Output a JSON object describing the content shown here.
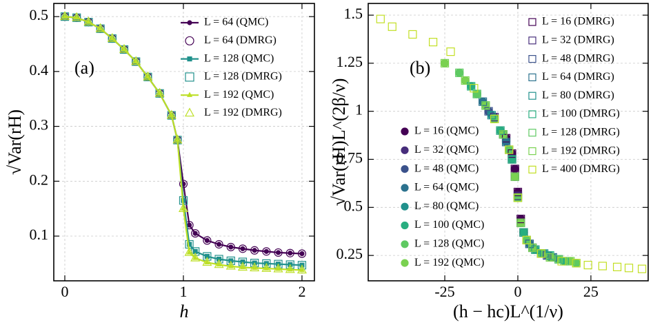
{
  "chart_data": [
    {
      "type": "line",
      "panel_label": "(a)",
      "xlabel": "h",
      "ylabel": "√Var(rH)",
      "xlim": [
        -0.093,
        2.105
      ],
      "ylim": [
        0.0185,
        0.524
      ],
      "xticks": [
        0,
        1,
        2
      ],
      "yticks": [
        0.1,
        0.2,
        0.3,
        0.4,
        0.5
      ],
      "grid": true,
      "x": [
        0,
        0.1,
        0.2,
        0.3,
        0.4,
        0.5,
        0.6,
        0.7,
        0.8,
        0.9,
        0.95,
        1.0,
        1.05,
        1.1,
        1.2,
        1.3,
        1.4,
        1.5,
        1.6,
        1.7,
        1.8,
        1.9,
        2.0
      ],
      "series": [
        {
          "name": "L = 64 (QMC)",
          "color": "#440154",
          "marker": "circle",
          "filled": true,
          "line": true,
          "values": [
            0.5,
            0.498,
            0.49,
            0.478,
            0.46,
            0.44,
            0.418,
            0.39,
            0.36,
            0.32,
            0.275,
            0.195,
            0.12,
            0.105,
            0.092,
            0.085,
            0.08,
            0.077,
            0.074,
            0.072,
            0.07,
            0.069,
            0.068
          ]
        },
        {
          "name": "L = 64 (DMRG)",
          "color": "#440154",
          "marker": "circle",
          "filled": false,
          "line": false,
          "values": [
            0.5,
            0.498,
            0.49,
            0.478,
            0.46,
            0.44,
            0.418,
            0.39,
            0.36,
            0.32,
            0.275,
            0.195,
            0.12,
            0.105,
            0.092,
            0.085,
            0.08,
            0.077,
            0.074,
            0.072,
            0.07,
            0.069,
            0.068
          ]
        },
        {
          "name": "L = 128 (QMC)",
          "color": "#21918c",
          "marker": "square",
          "filled": true,
          "line": true,
          "values": [
            0.5,
            0.498,
            0.49,
            0.478,
            0.46,
            0.44,
            0.418,
            0.39,
            0.36,
            0.32,
            0.275,
            0.165,
            0.085,
            0.072,
            0.063,
            0.058,
            0.055,
            0.053,
            0.051,
            0.05,
            0.049,
            0.048,
            0.047
          ]
        },
        {
          "name": "L = 128 (DMRG)",
          "color": "#21918c",
          "marker": "square",
          "filled": false,
          "line": false,
          "values": [
            0.5,
            0.498,
            0.49,
            0.478,
            0.46,
            0.44,
            0.418,
            0.39,
            0.36,
            0.32,
            0.275,
            0.165,
            0.085,
            0.072,
            0.063,
            0.058,
            0.055,
            0.053,
            0.051,
            0.05,
            0.049,
            0.048,
            0.047
          ]
        },
        {
          "name": "L = 192 (QMC)",
          "color": "#bddf26",
          "marker": "triangle",
          "filled": true,
          "line": true,
          "values": [
            0.5,
            0.498,
            0.49,
            0.478,
            0.46,
            0.44,
            0.418,
            0.39,
            0.36,
            0.32,
            0.275,
            0.15,
            0.07,
            0.06,
            0.052,
            0.048,
            0.045,
            0.043,
            0.042,
            0.041,
            0.04,
            0.039,
            0.038
          ]
        },
        {
          "name": "L = 192 (DMRG)",
          "color": "#bddf26",
          "marker": "triangle",
          "filled": false,
          "line": false,
          "values": [
            0.5,
            0.498,
            0.49,
            0.478,
            0.46,
            0.44,
            0.418,
            0.39,
            0.36,
            0.32,
            0.275,
            0.15,
            0.07,
            0.06,
            0.052,
            0.048,
            0.045,
            0.043,
            0.042,
            0.041,
            0.04,
            0.039,
            0.038
          ]
        }
      ]
    },
    {
      "type": "scatter",
      "panel_label": "(b)",
      "xlabel": "(h − hc)L^(1/ν)",
      "ylabel": "√Var(rH)L^(2β/ν)",
      "xlim": [
        -51.2,
        44.6
      ],
      "ylim": [
        0.118,
        1.561
      ],
      "xticks": [
        -25,
        0,
        25
      ],
      "yticks": [
        0.25,
        0.5,
        0.75,
        1.0,
        1.25,
        1.5
      ],
      "grid": true,
      "series": [
        {
          "name": "L = 16 (QMC)",
          "color": "#440154",
          "marker": "circle",
          "filled": true,
          "x": [
            -4,
            -2,
            -1,
            0,
            1,
            2,
            4
          ],
          "values": [
            0.86,
            0.78,
            0.7,
            0.58,
            0.44,
            0.37,
            0.31
          ]
        },
        {
          "name": "L = 32 (QMC)",
          "color": "#472d7b",
          "marker": "circle",
          "filled": true,
          "x": [
            -8,
            -5,
            -2,
            0,
            2,
            5,
            8
          ],
          "values": [
            0.97,
            0.88,
            0.75,
            0.56,
            0.37,
            0.29,
            0.26
          ]
        },
        {
          "name": "L = 48 (QMC)",
          "color": "#3b528b",
          "marker": "circle",
          "filled": true,
          "x": [
            -10,
            -6,
            -3,
            -1,
            1,
            3,
            6,
            10
          ],
          "values": [
            1.0,
            0.9,
            0.8,
            0.66,
            0.42,
            0.33,
            0.28,
            0.25
          ]
        },
        {
          "name": "L = 64 (QMC)",
          "color": "#2c728e",
          "marker": "circle",
          "filled": true,
          "x": [
            -12,
            -8,
            -4,
            -1,
            1,
            4,
            8,
            12
          ],
          "values": [
            1.05,
            0.96,
            0.84,
            0.66,
            0.42,
            0.31,
            0.26,
            0.24
          ]
        },
        {
          "name": "L = 80 (QMC)",
          "color": "#21918c",
          "marker": "circle",
          "filled": true,
          "x": [
            -14,
            -9,
            -5,
            -2,
            0,
            2,
            5,
            9,
            14
          ],
          "values": [
            1.09,
            0.98,
            0.88,
            0.75,
            0.55,
            0.37,
            0.29,
            0.26,
            0.23
          ]
        },
        {
          "name": "L = 100 (QMC)",
          "color": "#28ae80",
          "marker": "circle",
          "filled": true,
          "x": [
            -16,
            -11,
            -6,
            -2,
            0,
            2,
            6,
            11,
            16
          ],
          "values": [
            1.13,
            1.03,
            0.9,
            0.75,
            0.55,
            0.37,
            0.28,
            0.25,
            0.22
          ]
        },
        {
          "name": "L = 128 (QMC)",
          "color": "#5ec962",
          "marker": "circle",
          "filled": true,
          "x": [
            -20,
            -14,
            -8,
            -3,
            0,
            3,
            8,
            14,
            20
          ],
          "values": [
            1.2,
            1.09,
            0.96,
            0.8,
            0.55,
            0.33,
            0.26,
            0.23,
            0.21
          ]
        },
        {
          "name": "L = 192 (QMC)",
          "color": "#7ad151",
          "marker": "circle",
          "filled": true,
          "x": [
            -25,
            -18,
            -11,
            -5,
            -1,
            1,
            5,
            11,
            18
          ],
          "values": [
            1.25,
            1.16,
            1.03,
            0.88,
            0.66,
            0.42,
            0.29,
            0.24,
            0.22
          ]
        },
        {
          "name": "L = 16 (DMRG)",
          "color": "#440154",
          "marker": "square",
          "filled": false,
          "x": [
            -4,
            -2,
            -1,
            0,
            1,
            2,
            4
          ],
          "values": [
            0.86,
            0.78,
            0.7,
            0.58,
            0.44,
            0.37,
            0.31
          ]
        },
        {
          "name": "L = 32 (DMRG)",
          "color": "#472d7b",
          "marker": "square",
          "filled": false,
          "x": [
            -8,
            -5,
            -2,
            0,
            2,
            5,
            8
          ],
          "values": [
            0.97,
            0.88,
            0.75,
            0.56,
            0.37,
            0.29,
            0.26
          ]
        },
        {
          "name": "L = 48 (DMRG)",
          "color": "#3b528b",
          "marker": "square",
          "filled": false,
          "x": [
            -10,
            -6,
            -3,
            -1,
            1,
            3,
            6,
            10
          ],
          "values": [
            1.0,
            0.9,
            0.8,
            0.66,
            0.42,
            0.33,
            0.28,
            0.25
          ]
        },
        {
          "name": "L = 64 (DMRG)",
          "color": "#2c728e",
          "marker": "square",
          "filled": false,
          "x": [
            -12,
            -8,
            -4,
            -1,
            1,
            4,
            8,
            12
          ],
          "values": [
            1.05,
            0.96,
            0.84,
            0.66,
            0.42,
            0.31,
            0.26,
            0.24
          ]
        },
        {
          "name": "L = 80 (DMRG)",
          "color": "#21918c",
          "marker": "square",
          "filled": false,
          "x": [
            -14,
            -9,
            -5,
            -2,
            0,
            2,
            5,
            9,
            14
          ],
          "values": [
            1.09,
            0.98,
            0.88,
            0.75,
            0.55,
            0.37,
            0.29,
            0.26,
            0.23
          ]
        },
        {
          "name": "L = 100 (DMRG)",
          "color": "#28ae80",
          "marker": "square",
          "filled": false,
          "x": [
            -16,
            -11,
            -6,
            -2,
            0,
            2,
            6,
            11,
            16
          ],
          "values": [
            1.13,
            1.03,
            0.9,
            0.75,
            0.55,
            0.37,
            0.28,
            0.25,
            0.22
          ]
        },
        {
          "name": "L = 128 (DMRG)",
          "color": "#5ec962",
          "marker": "square",
          "filled": false,
          "x": [
            -20,
            -14,
            -8,
            -3,
            0,
            3,
            8,
            14,
            20
          ],
          "values": [
            1.2,
            1.09,
            0.96,
            0.8,
            0.55,
            0.33,
            0.26,
            0.23,
            0.21
          ]
        },
        {
          "name": "L = 192 (DMRG)",
          "color": "#7ad151",
          "marker": "square",
          "filled": false,
          "x": [
            -25,
            -18,
            -11,
            -5,
            -1,
            1,
            5,
            11,
            18
          ],
          "values": [
            1.25,
            1.16,
            1.03,
            0.88,
            0.66,
            0.42,
            0.29,
            0.24,
            0.22
          ]
        },
        {
          "name": "L = 400 (DMRG)",
          "color": "#c2df23",
          "marker": "square",
          "filled": false,
          "x": [
            -47,
            -43,
            -36,
            -29,
            -23,
            -15,
            -8,
            -3,
            0,
            3,
            8,
            15,
            20,
            24,
            29,
            34,
            38,
            42.5
          ],
          "values": [
            1.48,
            1.44,
            1.4,
            1.36,
            1.31,
            1.12,
            0.96,
            0.8,
            0.55,
            0.33,
            0.26,
            0.22,
            0.21,
            0.2,
            0.195,
            0.19,
            0.185,
            0.18
          ]
        }
      ]
    }
  ]
}
